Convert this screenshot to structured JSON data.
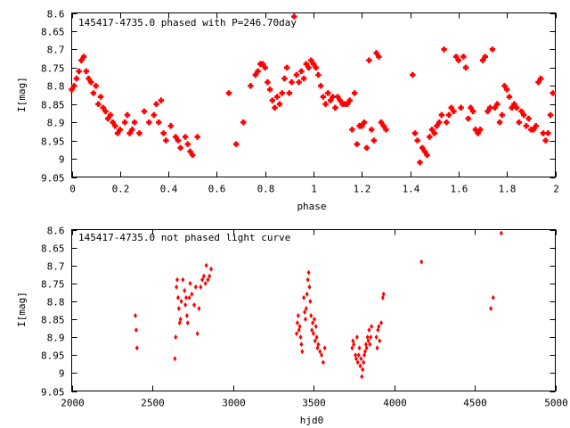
{
  "chart_data": [
    {
      "type": "scatter",
      "title": "145417-4735.0 phased with P=246.70day",
      "xlabel": "phase",
      "ylabel": "I[mag]",
      "xlim": [
        0,
        2
      ],
      "ylim": [
        9.05,
        8.6
      ],
      "y_inverted": true,
      "grid": false,
      "marker_color": "#ff0000",
      "marker_shape": "cross",
      "x_ticks": [
        0,
        0.2,
        0.4,
        0.6,
        0.8,
        1,
        1.2,
        1.4,
        1.6,
        1.8,
        2
      ],
      "x_tick_labels": [
        "0",
        "0.2",
        "0.4",
        "0.6",
        "0.8",
        "1",
        "1.2",
        "1.4",
        "1.6",
        "1.8",
        "2"
      ],
      "y_ticks": [
        8.6,
        8.65,
        8.7,
        8.75,
        8.8,
        8.85,
        8.9,
        8.95,
        9,
        9.05
      ],
      "y_tick_labels": [
        "8.6",
        "8.65",
        "8.7",
        "8.75",
        "8.8",
        "8.85",
        "8.9",
        "8.95",
        "9",
        "9.05"
      ],
      "points": [
        [
          0.0,
          8.81
        ],
        [
          0.01,
          8.8
        ],
        [
          0.02,
          8.78
        ],
        [
          0.03,
          8.76
        ],
        [
          0.04,
          8.73
        ],
        [
          0.05,
          8.72
        ],
        [
          0.06,
          8.76
        ],
        [
          0.07,
          8.78
        ],
        [
          0.08,
          8.79
        ],
        [
          0.09,
          8.82
        ],
        [
          0.1,
          8.8
        ],
        [
          0.11,
          8.85
        ],
        [
          0.12,
          8.83
        ],
        [
          0.13,
          8.86
        ],
        [
          0.14,
          8.87
        ],
        [
          0.15,
          8.89
        ],
        [
          0.16,
          8.88
        ],
        [
          0.17,
          8.9
        ],
        [
          0.18,
          8.91
        ],
        [
          0.19,
          8.93
        ],
        [
          0.2,
          8.92
        ],
        [
          0.22,
          8.9
        ],
        [
          0.23,
          8.88
        ],
        [
          0.24,
          8.93
        ],
        [
          0.25,
          8.92
        ],
        [
          0.26,
          8.9
        ],
        [
          0.28,
          8.93
        ],
        [
          0.3,
          8.87
        ],
        [
          0.32,
          8.9
        ],
        [
          0.34,
          8.88
        ],
        [
          0.35,
          8.85
        ],
        [
          0.36,
          8.9
        ],
        [
          0.37,
          8.84
        ],
        [
          0.38,
          8.93
        ],
        [
          0.39,
          8.95
        ],
        [
          0.41,
          8.91
        ],
        [
          0.43,
          8.94
        ],
        [
          0.44,
          8.95
        ],
        [
          0.45,
          8.97
        ],
        [
          0.47,
          8.94
        ],
        [
          0.48,
          8.96
        ],
        [
          0.49,
          8.98
        ],
        [
          0.5,
          8.99
        ],
        [
          0.52,
          8.94
        ],
        [
          0.65,
          8.82
        ],
        [
          0.68,
          8.96
        ],
        [
          0.71,
          8.9
        ],
        [
          0.74,
          8.8
        ],
        [
          0.76,
          8.77
        ],
        [
          0.77,
          8.76
        ],
        [
          0.78,
          8.74
        ],
        [
          0.79,
          8.74
        ],
        [
          0.8,
          8.75
        ],
        [
          0.81,
          8.79
        ],
        [
          0.82,
          8.81
        ],
        [
          0.83,
          8.84
        ],
        [
          0.84,
          8.86
        ],
        [
          0.85,
          8.83
        ],
        [
          0.86,
          8.85
        ],
        [
          0.87,
          8.82
        ],
        [
          0.88,
          8.78
        ],
        [
          0.89,
          8.75
        ],
        [
          0.9,
          8.82
        ],
        [
          0.91,
          8.79
        ],
        [
          0.92,
          8.61
        ],
        [
          0.93,
          8.77
        ],
        [
          0.94,
          8.79
        ],
        [
          0.95,
          8.76
        ],
        [
          0.96,
          8.78
        ],
        [
          0.97,
          8.74
        ],
        [
          0.98,
          8.75
        ],
        [
          0.99,
          8.73
        ],
        [
          1.0,
          8.74
        ],
        [
          1.01,
          8.75
        ],
        [
          1.02,
          8.77
        ],
        [
          1.03,
          8.8
        ],
        [
          1.04,
          8.83
        ],
        [
          1.05,
          8.85
        ],
        [
          1.06,
          8.82
        ],
        [
          1.07,
          8.84
        ],
        [
          1.08,
          8.83
        ],
        [
          1.09,
          8.86
        ],
        [
          1.1,
          8.83
        ],
        [
          1.11,
          8.84
        ],
        [
          1.12,
          8.85
        ],
        [
          1.13,
          8.85
        ],
        [
          1.14,
          8.85
        ],
        [
          1.15,
          8.84
        ],
        [
          1.16,
          8.92
        ],
        [
          1.17,
          8.82
        ],
        [
          1.18,
          8.96
        ],
        [
          1.19,
          8.91
        ],
        [
          1.2,
          8.91
        ],
        [
          1.21,
          8.9
        ],
        [
          1.22,
          8.97
        ],
        [
          1.23,
          8.73
        ],
        [
          1.24,
          8.92
        ],
        [
          1.25,
          8.95
        ],
        [
          1.26,
          8.71
        ],
        [
          1.27,
          8.72
        ],
        [
          1.28,
          8.9
        ],
        [
          1.29,
          8.91
        ],
        [
          1.3,
          8.92
        ],
        [
          1.41,
          8.77
        ],
        [
          1.42,
          8.93
        ],
        [
          1.43,
          8.95
        ],
        [
          1.44,
          9.01
        ],
        [
          1.45,
          8.97
        ],
        [
          1.46,
          8.98
        ],
        [
          1.47,
          8.99
        ],
        [
          1.48,
          8.94
        ],
        [
          1.49,
          8.92
        ],
        [
          1.5,
          8.93
        ],
        [
          1.51,
          8.91
        ],
        [
          1.52,
          8.9
        ],
        [
          1.53,
          8.88
        ],
        [
          1.54,
          8.7
        ],
        [
          1.55,
          8.9
        ],
        [
          1.56,
          8.88
        ],
        [
          1.57,
          8.86
        ],
        [
          1.58,
          8.87
        ],
        [
          1.59,
          8.72
        ],
        [
          1.6,
          8.73
        ],
        [
          1.61,
          8.86
        ],
        [
          1.62,
          8.72
        ],
        [
          1.63,
          8.75
        ],
        [
          1.64,
          8.89
        ],
        [
          1.65,
          8.86
        ],
        [
          1.66,
          8.87
        ],
        [
          1.67,
          8.92
        ],
        [
          1.68,
          8.93
        ],
        [
          1.69,
          8.92
        ],
        [
          1.7,
          8.73
        ],
        [
          1.71,
          8.72
        ],
        [
          1.72,
          8.87
        ],
        [
          1.73,
          8.86
        ],
        [
          1.74,
          8.7
        ],
        [
          1.75,
          8.86
        ],
        [
          1.76,
          8.85
        ],
        [
          1.77,
          8.9
        ],
        [
          1.78,
          8.88
        ],
        [
          1.79,
          8.8
        ],
        [
          1.8,
          8.81
        ],
        [
          1.81,
          8.83
        ],
        [
          1.82,
          8.86
        ],
        [
          1.83,
          8.85
        ],
        [
          1.84,
          8.86
        ],
        [
          1.85,
          8.9
        ],
        [
          1.86,
          8.87
        ],
        [
          1.87,
          8.88
        ],
        [
          1.88,
          8.91
        ],
        [
          1.89,
          8.89
        ],
        [
          1.9,
          8.92
        ],
        [
          1.91,
          8.92
        ],
        [
          1.92,
          8.91
        ],
        [
          1.93,
          8.79
        ],
        [
          1.94,
          8.78
        ],
        [
          1.95,
          8.93
        ],
        [
          1.96,
          8.95
        ],
        [
          1.97,
          8.93
        ],
        [
          1.98,
          8.88
        ],
        [
          1.99,
          8.82
        ]
      ]
    },
    {
      "type": "scatter",
      "title": "145417-4735.0 not phased light curve",
      "xlabel": "hjd0",
      "ylabel": "I[mag]",
      "xlim": [
        2000,
        5000
      ],
      "ylim": [
        9.05,
        8.6
      ],
      "y_inverted": true,
      "grid": false,
      "marker_color": "#ff0000",
      "marker_shape": "diamond",
      "x_ticks": [
        2000,
        2500,
        3000,
        3500,
        4000,
        4500,
        5000
      ],
      "x_tick_labels": [
        "2000",
        "2500",
        "3000",
        "3500",
        "4000",
        "4500",
        "5000"
      ],
      "y_ticks": [
        8.6,
        8.65,
        8.7,
        8.75,
        8.8,
        8.85,
        8.9,
        8.95,
        9,
        9.05
      ],
      "y_tick_labels": [
        "8.6",
        "8.65",
        "8.7",
        "8.75",
        "8.8",
        "8.85",
        "8.9",
        "8.95",
        "9",
        "9.05"
      ],
      "points": [
        [
          2395,
          8.84
        ],
        [
          2400,
          8.88
        ],
        [
          2405,
          8.93
        ],
        [
          2640,
          8.96
        ],
        [
          2645,
          8.9
        ],
        [
          2650,
          8.76
        ],
        [
          2655,
          8.74
        ],
        [
          2660,
          8.79
        ],
        [
          2665,
          8.82
        ],
        [
          2670,
          8.86
        ],
        [
          2675,
          8.85
        ],
        [
          2680,
          8.8
        ],
        [
          2690,
          8.74
        ],
        [
          2700,
          8.77
        ],
        [
          2705,
          8.81
        ],
        [
          2710,
          8.79
        ],
        [
          2715,
          8.84
        ],
        [
          2720,
          8.86
        ],
        [
          2730,
          8.79
        ],
        [
          2735,
          8.75
        ],
        [
          2745,
          8.78
        ],
        [
          2760,
          8.81
        ],
        [
          2770,
          8.76
        ],
        [
          2780,
          8.89
        ],
        [
          2790,
          8.82
        ],
        [
          2800,
          8.76
        ],
        [
          2810,
          8.74
        ],
        [
          2820,
          8.73
        ],
        [
          2830,
          8.75
        ],
        [
          2835,
          8.7
        ],
        [
          2845,
          8.74
        ],
        [
          2855,
          8.73
        ],
        [
          2865,
          8.71
        ],
        [
          3395,
          8.89
        ],
        [
          3400,
          8.86
        ],
        [
          3405,
          8.84
        ],
        [
          3410,
          8.88
        ],
        [
          3415,
          8.87
        ],
        [
          3420,
          8.9
        ],
        [
          3425,
          8.92
        ],
        [
          3430,
          8.94
        ],
        [
          3440,
          8.79
        ],
        [
          3445,
          8.83
        ],
        [
          3450,
          8.85
        ],
        [
          3455,
          8.82
        ],
        [
          3460,
          8.78
        ],
        [
          3465,
          8.74
        ],
        [
          3470,
          8.72
        ],
        [
          3475,
          8.76
        ],
        [
          3480,
          8.8
        ],
        [
          3485,
          8.84
        ],
        [
          3490,
          8.88
        ],
        [
          3495,
          8.86
        ],
        [
          3500,
          8.89
        ],
        [
          3505,
          8.85
        ],
        [
          3510,
          8.91
        ],
        [
          3515,
          8.87
        ],
        [
          3520,
          8.9
        ],
        [
          3525,
          8.93
        ],
        [
          3530,
          8.92
        ],
        [
          3540,
          8.94
        ],
        [
          3550,
          8.95
        ],
        [
          3560,
          8.97
        ],
        [
          3570,
          8.93
        ],
        [
          3740,
          8.93
        ],
        [
          3745,
          8.91
        ],
        [
          3750,
          8.92
        ],
        [
          3760,
          8.95
        ],
        [
          3765,
          8.96
        ],
        [
          3770,
          8.9
        ],
        [
          3775,
          8.97
        ],
        [
          3780,
          8.95
        ],
        [
          3785,
          8.93
        ],
        [
          3790,
          8.98
        ],
        [
          3795,
          8.96
        ],
        [
          3800,
          9.01
        ],
        [
          3805,
          8.99
        ],
        [
          3810,
          8.97
        ],
        [
          3815,
          8.95
        ],
        [
          3820,
          8.94
        ],
        [
          3825,
          8.92
        ],
        [
          3830,
          8.93
        ],
        [
          3835,
          8.9
        ],
        [
          3840,
          8.91
        ],
        [
          3845,
          8.88
        ],
        [
          3850,
          8.92
        ],
        [
          3855,
          8.9
        ],
        [
          3860,
          8.87
        ],
        [
          3890,
          8.9
        ],
        [
          3895,
          8.93
        ],
        [
          3900,
          8.88
        ],
        [
          3905,
          8.87
        ],
        [
          3910,
          8.91
        ],
        [
          3920,
          8.86
        ],
        [
          3930,
          8.79
        ],
        [
          3935,
          8.78
        ],
        [
          4170,
          8.69
        ],
        [
          4600,
          8.82
        ],
        [
          4615,
          8.79
        ],
        [
          4665,
          8.61
        ]
      ]
    }
  ]
}
